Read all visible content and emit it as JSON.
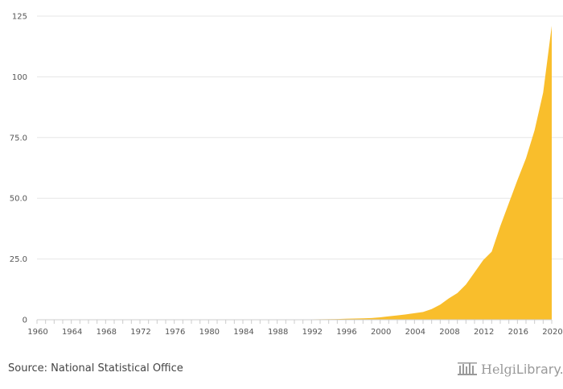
{
  "source": "Source: National Statistical Office",
  "logo": {
    "name_bold": "Helgi",
    "name_light": "Library."
  },
  "colors": {
    "area": "#f9be2c",
    "grid": "#e6e6e6",
    "axis": "#cccccc",
    "text": "#555555"
  },
  "chart_data": {
    "type": "area",
    "title": "",
    "xlabel": "",
    "ylabel": "",
    "xlim": [
      1960,
      2020
    ],
    "ylim": [
      0,
      125
    ],
    "yticks": [
      0,
      25.0,
      50.0,
      75.0,
      100,
      125
    ],
    "ytick_labels": [
      "0",
      "25.0",
      "50.0",
      "75.0",
      "100",
      "125"
    ],
    "xticks": [
      1960,
      1964,
      1968,
      1972,
      1976,
      1980,
      1984,
      1988,
      1992,
      1996,
      2000,
      2004,
      2008,
      2012,
      2016,
      2020
    ],
    "grid": true,
    "x": [
      1960,
      1961,
      1962,
      1963,
      1964,
      1965,
      1966,
      1967,
      1968,
      1969,
      1970,
      1971,
      1972,
      1973,
      1974,
      1975,
      1976,
      1977,
      1978,
      1979,
      1980,
      1981,
      1982,
      1983,
      1984,
      1985,
      1986,
      1987,
      1988,
      1989,
      1990,
      1991,
      1992,
      1993,
      1994,
      1995,
      1996,
      1997,
      1998,
      1999,
      2000,
      2001,
      2002,
      2003,
      2004,
      2005,
      2006,
      2007,
      2008,
      2009,
      2010,
      2011,
      2012,
      2013,
      2014,
      2015,
      2016,
      2017,
      2018,
      2019,
      2020
    ],
    "series": [
      {
        "values": [
          0.05,
          0.05,
          0.05,
          0.05,
          0.05,
          0.05,
          0.05,
          0.05,
          0.05,
          0.05,
          0.05,
          0.05,
          0.05,
          0.05,
          0.05,
          0.05,
          0.05,
          0.05,
          0.05,
          0.05,
          0.05,
          0.05,
          0.05,
          0.05,
          0.05,
          0.05,
          0.05,
          0.05,
          0.05,
          0.05,
          0.1,
          0.1,
          0.15,
          0.2,
          0.25,
          0.3,
          0.4,
          0.5,
          0.6,
          0.7,
          1.0,
          1.4,
          1.8,
          2.2,
          2.7,
          3.2,
          4.4,
          6.2,
          8.8,
          11.0,
          14.5,
          19.5,
          24.5,
          28.0,
          38.5,
          48.0,
          57.5,
          66.5,
          78.0,
          93.5,
          121.0
        ]
      }
    ]
  }
}
